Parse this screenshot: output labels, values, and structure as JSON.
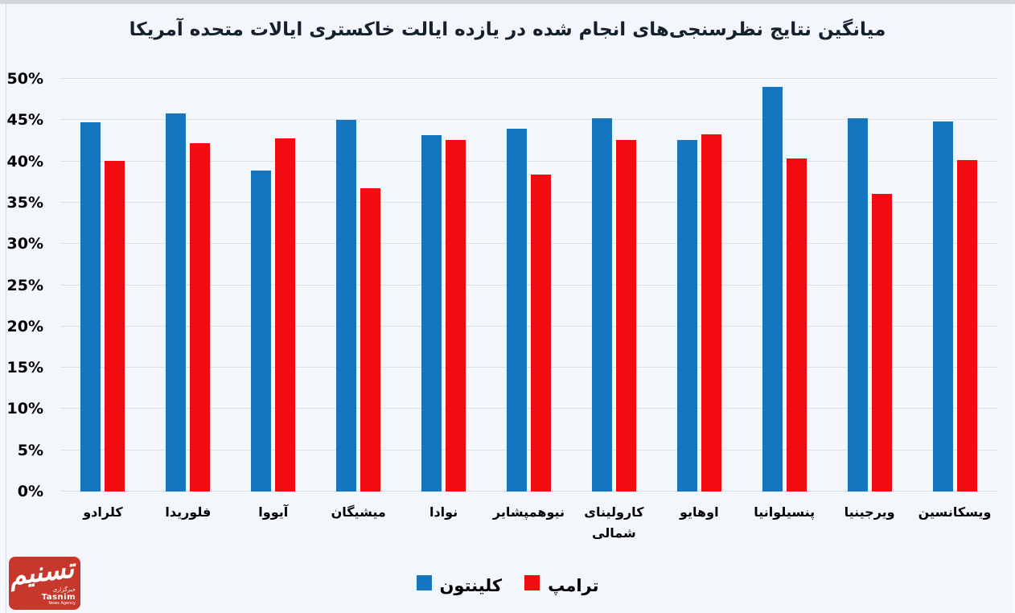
{
  "chart_data": {
    "type": "bar",
    "title": "میانگین نتایج نظرسنجی‌های انجام شده در یازده ایالت خاکستری ایالات متحده آمریکا",
    "categories": [
      "کلرادو",
      "فلوریدا",
      "آیووا",
      "میشیگان",
      "نوادا",
      "نیوهمپشایر",
      "کارولینای شمالی",
      "اوهایو",
      "پنسیلوانیا",
      "ویرجینیا",
      "ویسکانسین"
    ],
    "series": [
      {
        "name": "کلینتون",
        "color": "#1476BE",
        "values": [
          44.7,
          45.8,
          38.9,
          45.0,
          43.2,
          44.0,
          45.2,
          42.6,
          49.0,
          45.2,
          44.8
        ]
      },
      {
        "name": "ترامپ",
        "color": "#F20B10",
        "values": [
          40.1,
          42.2,
          42.8,
          36.7,
          42.6,
          38.4,
          42.6,
          43.3,
          40.4,
          36.1,
          40.2
        ]
      }
    ],
    "xlabel": "",
    "ylabel": "",
    "ylim": [
      0,
      50
    ],
    "ytick_step": 5,
    "yticks": [
      "0%",
      "5%",
      "10%",
      "15%",
      "20%",
      "25%",
      "30%",
      "35%",
      "40%",
      "45%",
      "50%"
    ],
    "grid": true,
    "legend_position": "bottom"
  },
  "colors": {
    "background": "#F3F6FA",
    "gridline": "#DDE1E7",
    "title_text": "#15202E",
    "clinton_blue": "#1476BE",
    "trump_red": "#F20B10",
    "logo_red": "#C7382C"
  },
  "logo": {
    "calligraphy": "تسنیم",
    "agency_fa": "خبرگزاری",
    "brand_en": "Tasnim",
    "tagline_en": "News Agency"
  }
}
